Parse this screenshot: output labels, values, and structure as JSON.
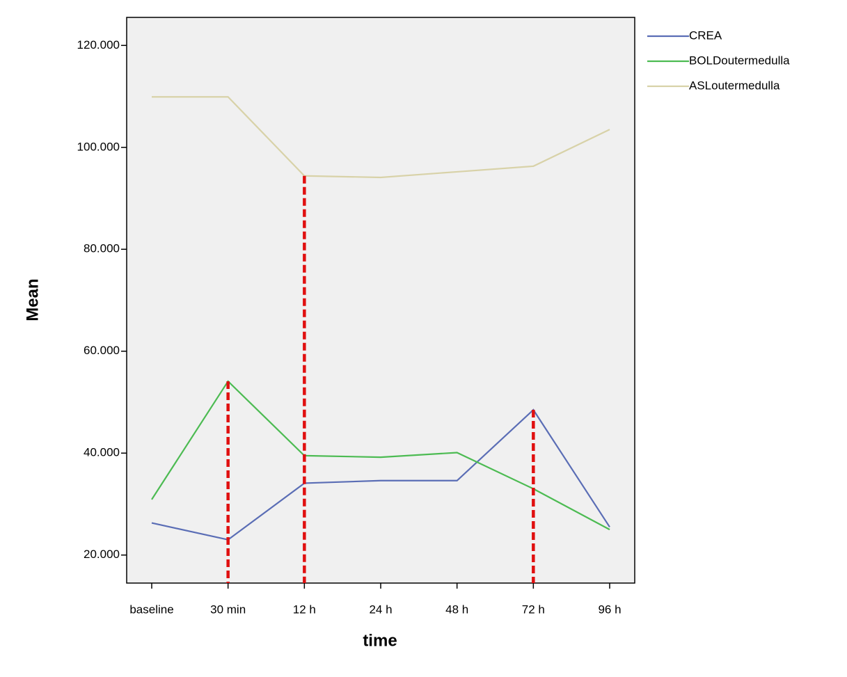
{
  "chart_data": {
    "type": "line",
    "x_label": "time",
    "y_label": "Mean",
    "categories": [
      "baseline",
      "30 min",
      "12 h",
      "24 h",
      "48 h",
      "72 h",
      "96 h"
    ],
    "series": [
      {
        "name": "CREA",
        "color": "#5a6db5",
        "values": [
          26.3,
          23.0,
          34.1,
          34.6,
          34.6,
          48.5,
          25.5
        ]
      },
      {
        "name": "BOLDoutermedulla",
        "color": "#4cbb52",
        "values": [
          30.9,
          54.1,
          39.5,
          39.2,
          40.1,
          33.0,
          25.0
        ]
      },
      {
        "name": "ASLoutermedulla",
        "color": "#d8d2a8",
        "values": [
          109.9,
          109.9,
          94.4,
          94.1,
          95.2,
          96.3,
          103.5
        ]
      }
    ],
    "ylim": [
      14.5,
      125.5
    ],
    "yticks": [
      {
        "value": 20,
        "label": "20.000"
      },
      {
        "value": 40,
        "label": "40.000"
      },
      {
        "value": 60,
        "label": "60.000"
      },
      {
        "value": 80,
        "label": "80.000"
      },
      {
        "value": 100,
        "label": "100.000"
      },
      {
        "value": 120,
        "label": "120.000"
      }
    ],
    "legend": "right"
  }
}
